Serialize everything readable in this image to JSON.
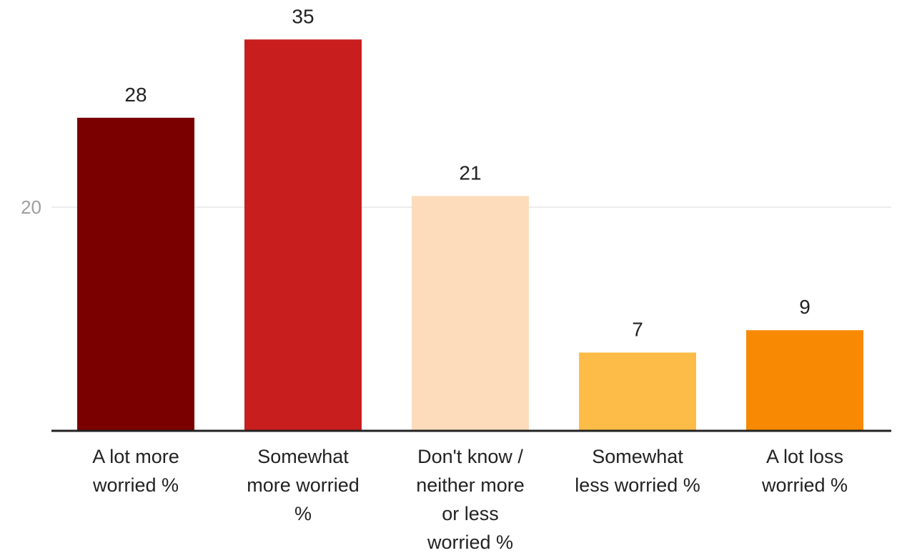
{
  "chart_data": {
    "type": "bar",
    "categories": [
      [
        "A lot more",
        "worried %"
      ],
      [
        "Somewhat",
        "more worried",
        "%"
      ],
      [
        "Don't know /",
        "neither more",
        "or less",
        "worried %"
      ],
      [
        "Somewhat",
        "less worried %"
      ],
      [
        "A lot loss",
        "worried %"
      ]
    ],
    "values": [
      28,
      35,
      21,
      7,
      9
    ],
    "value_labels": [
      "28",
      "35",
      "21",
      "7",
      "9"
    ],
    "colors": [
      "#7a0000",
      "#c81e1e",
      "#fddcbc",
      "#fdbc47",
      "#f88a03"
    ],
    "y_ticks": [
      20
    ],
    "ylim": [
      0,
      35
    ],
    "grid": true,
    "title": "",
    "xlabel": "",
    "ylabel": ""
  }
}
